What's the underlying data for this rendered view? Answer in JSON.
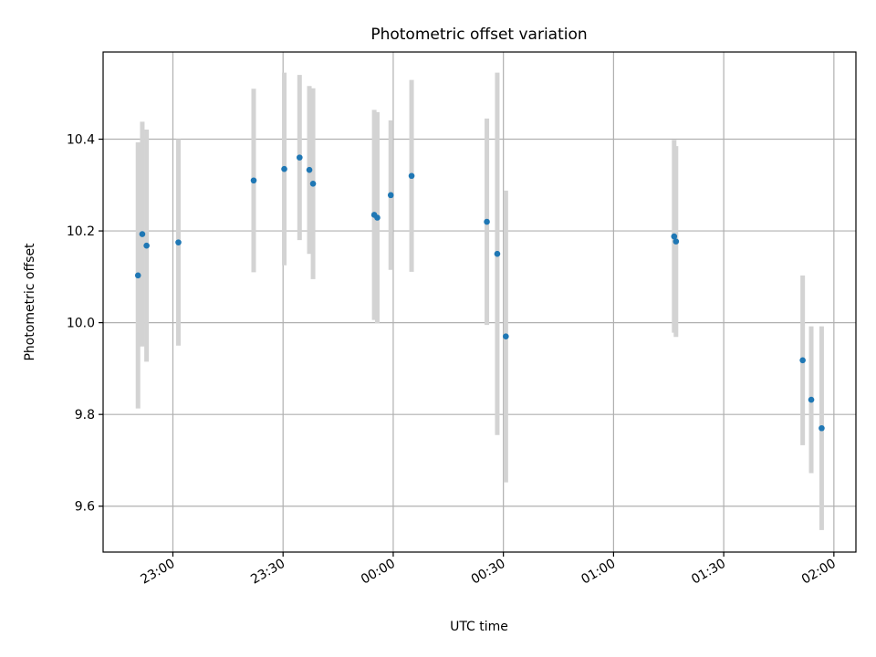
{
  "chart_data": {
    "type": "scatter",
    "title": "Photometric offset variation",
    "xlabel": "UTC time",
    "ylabel": "Photometric offset",
    "x_axis_type": "time",
    "xlim": [
      "22:41",
      "02:06"
    ],
    "ylim": [
      9.5,
      10.59
    ],
    "x_ticks": [
      "23:00",
      "23:30",
      "00:00",
      "00:30",
      "01:00",
      "01:30",
      "02:00"
    ],
    "y_ticks": [
      9.6,
      9.8,
      10.0,
      10.2,
      10.4
    ],
    "y_tick_labels": [
      "9.6",
      "9.8",
      "10.0",
      "10.2",
      "10.4"
    ],
    "grid": true,
    "colors": {
      "point": "#1f77b4",
      "errorbar": "#d3d3d3",
      "grid": "#b0b0b0"
    },
    "points": [
      {
        "x": "22:50:30",
        "y": 10.103,
        "yerr": 0.29
      },
      {
        "x": "22:51:40",
        "y": 10.193,
        "yerr": 0.245
      },
      {
        "x": "22:52:50",
        "y": 10.168,
        "yerr": 0.253
      },
      {
        "x": "23:01:30",
        "y": 10.175,
        "yerr": 0.225
      },
      {
        "x": "23:22:00",
        "y": 10.31,
        "yerr": 0.2
      },
      {
        "x": "23:30:20",
        "y": 10.335,
        "yerr": 0.21
      },
      {
        "x": "23:34:30",
        "y": 10.36,
        "yerr": 0.18
      },
      {
        "x": "23:37:10",
        "y": 10.333,
        "yerr": 0.183
      },
      {
        "x": "23:38:10",
        "y": 10.303,
        "yerr": 0.208
      },
      {
        "x": "23:54:50",
        "y": 10.235,
        "yerr": 0.229
      },
      {
        "x": "23:55:40",
        "y": 10.229,
        "yerr": 0.23
      },
      {
        "x": "23:59:20",
        "y": 10.278,
        "yerr": 0.163
      },
      {
        "x": "00:05:00",
        "y": 10.32,
        "yerr": 0.209
      },
      {
        "x": "00:25:30",
        "y": 10.22,
        "yerr": 0.225
      },
      {
        "x": "00:28:20",
        "y": 10.15,
        "yerr": 0.395
      },
      {
        "x": "00:30:40",
        "y": 9.97,
        "yerr": 0.318
      },
      {
        "x": "01:16:30",
        "y": 10.188,
        "yerr": 0.21
      },
      {
        "x": "01:17:00",
        "y": 10.177,
        "yerr": 0.208
      },
      {
        "x": "01:51:30",
        "y": 9.918,
        "yerr": 0.185
      },
      {
        "x": "01:53:50",
        "y": 9.832,
        "yerr": 0.16
      },
      {
        "x": "01:56:40",
        "y": 9.77,
        "yerr": 0.222
      }
    ]
  }
}
